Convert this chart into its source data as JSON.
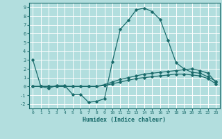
{
  "xlabel": "Humidex (Indice chaleur)",
  "ylabel": "",
  "bg_color": "#b2dede",
  "grid_color": "#ffffff",
  "line_color": "#1a6b6b",
  "xlim": [
    -0.5,
    23.5
  ],
  "ylim": [
    -2.5,
    9.5
  ],
  "xticks": [
    0,
    1,
    2,
    3,
    4,
    5,
    6,
    7,
    8,
    9,
    10,
    11,
    12,
    13,
    14,
    15,
    16,
    17,
    18,
    19,
    20,
    21,
    22,
    23
  ],
  "yticks": [
    -2,
    -1,
    0,
    1,
    2,
    3,
    4,
    5,
    6,
    7,
    8,
    9
  ],
  "series": [
    {
      "x": [
        0,
        1,
        2,
        3,
        4,
        5,
        6,
        7,
        8,
        9,
        10,
        11,
        12,
        13,
        14,
        15,
        16,
        17,
        18,
        19,
        20,
        21,
        22,
        23
      ],
      "y": [
        3.0,
        0.0,
        -0.2,
        0.1,
        0.1,
        -0.9,
        -0.9,
        -1.8,
        -1.7,
        -1.4,
        2.8,
        6.5,
        7.5,
        8.7,
        8.9,
        8.5,
        7.6,
        5.2,
        2.7,
        2.0,
        1.6,
        1.5,
        1.1,
        0.6
      ]
    },
    {
      "x": [
        0,
        1,
        2,
        3,
        4,
        5,
        6,
        7,
        8,
        9,
        10,
        11,
        12,
        13,
        14,
        15,
        16,
        17,
        18,
        19,
        20,
        21,
        22,
        23
      ],
      "y": [
        0.0,
        0.0,
        0.0,
        0.0,
        0.0,
        0.0,
        0.0,
        0.0,
        0.0,
        0.2,
        0.5,
        0.8,
        1.0,
        1.2,
        1.4,
        1.5,
        1.6,
        1.7,
        1.8,
        1.9,
        2.0,
        1.8,
        1.5,
        0.5
      ]
    },
    {
      "x": [
        0,
        1,
        2,
        3,
        4,
        5,
        6,
        7,
        8,
        9,
        10,
        11,
        12,
        13,
        14,
        15,
        16,
        17,
        18,
        19,
        20,
        21,
        22,
        23
      ],
      "y": [
        0.0,
        0.0,
        0.0,
        0.0,
        0.0,
        0.0,
        0.0,
        0.0,
        0.0,
        0.1,
        0.3,
        0.5,
        0.7,
        0.9,
        1.0,
        1.1,
        1.2,
        1.3,
        1.4,
        1.4,
        1.3,
        1.2,
        0.9,
        0.3
      ]
    }
  ]
}
